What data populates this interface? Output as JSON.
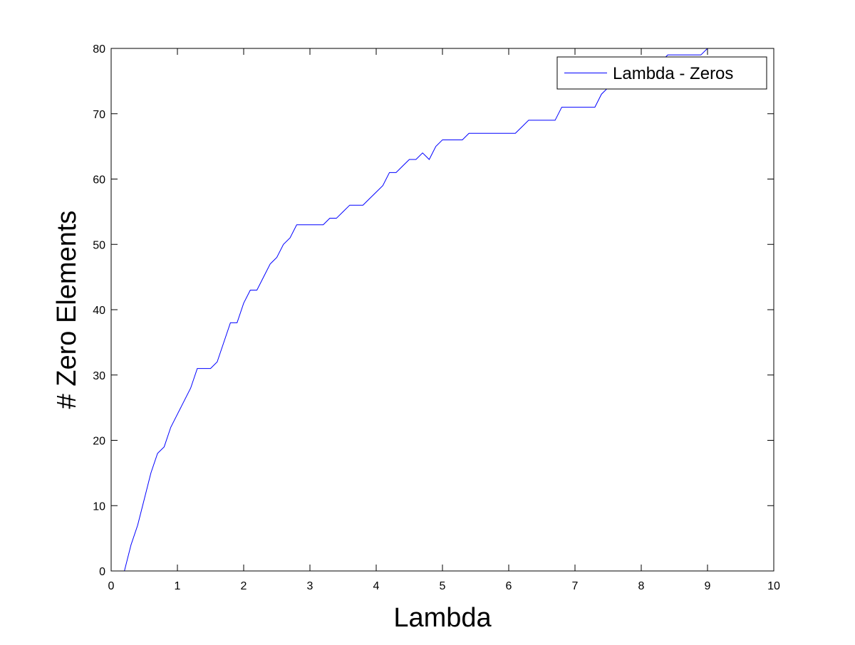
{
  "chart_data": {
    "type": "line",
    "title": "",
    "xlabel": "Lambda",
    "ylabel": "# Zero Elements",
    "xlim": [
      0,
      10
    ],
    "ylim": [
      0,
      80
    ],
    "xticks": [
      0,
      1,
      2,
      3,
      4,
      5,
      6,
      7,
      8,
      9,
      10
    ],
    "yticks": [
      0,
      10,
      20,
      30,
      40,
      50,
      60,
      70,
      80
    ],
    "grid": false,
    "legend_position": "top-right",
    "series": [
      {
        "name": "Lambda - Zeros",
        "color": "#0000ff",
        "x": [
          0.2,
          0.3,
          0.4,
          0.5,
          0.6,
          0.7,
          0.8,
          0.9,
          1.0,
          1.1,
          1.2,
          1.3,
          1.4,
          1.5,
          1.6,
          1.7,
          1.8,
          1.9,
          2.0,
          2.1,
          2.2,
          2.3,
          2.4,
          2.5,
          2.6,
          2.7,
          2.8,
          2.9,
          3.0,
          3.1,
          3.2,
          3.3,
          3.4,
          3.5,
          3.6,
          3.7,
          3.8,
          3.9,
          4.0,
          4.1,
          4.2,
          4.3,
          4.4,
          4.5,
          4.6,
          4.7,
          4.8,
          4.9,
          5.0,
          5.1,
          5.2,
          5.3,
          5.4,
          5.5,
          5.6,
          5.7,
          5.8,
          5.9,
          6.0,
          6.1,
          6.2,
          6.3,
          6.4,
          6.5,
          6.6,
          6.7,
          6.8,
          6.9,
          7.0,
          7.1,
          7.2,
          7.3,
          7.4,
          7.5,
          7.6,
          7.7,
          7.8,
          7.9,
          8.0,
          8.1,
          8.2,
          8.3,
          8.4,
          8.5,
          8.6,
          8.7,
          8.8,
          8.9,
          9.0
        ],
        "y": [
          0,
          4,
          7,
          11,
          15,
          18,
          19,
          22,
          24,
          26,
          28,
          31,
          31,
          31,
          32,
          35,
          38,
          38,
          41,
          43,
          43,
          45,
          47,
          48,
          50,
          51,
          53,
          53,
          53,
          53,
          53,
          54,
          54,
          55,
          56,
          56,
          56,
          57,
          58,
          59,
          61,
          61,
          62,
          63,
          63,
          64,
          63,
          65,
          66,
          66,
          66,
          66,
          67,
          67,
          67,
          67,
          67,
          67,
          67,
          67,
          68,
          69,
          69,
          69,
          69,
          69,
          71,
          71,
          71,
          71,
          71,
          71,
          73,
          74,
          75,
          75,
          76,
          76,
          77,
          77,
          78,
          78,
          79,
          79,
          79,
          79,
          79,
          79,
          80
        ]
      }
    ]
  }
}
